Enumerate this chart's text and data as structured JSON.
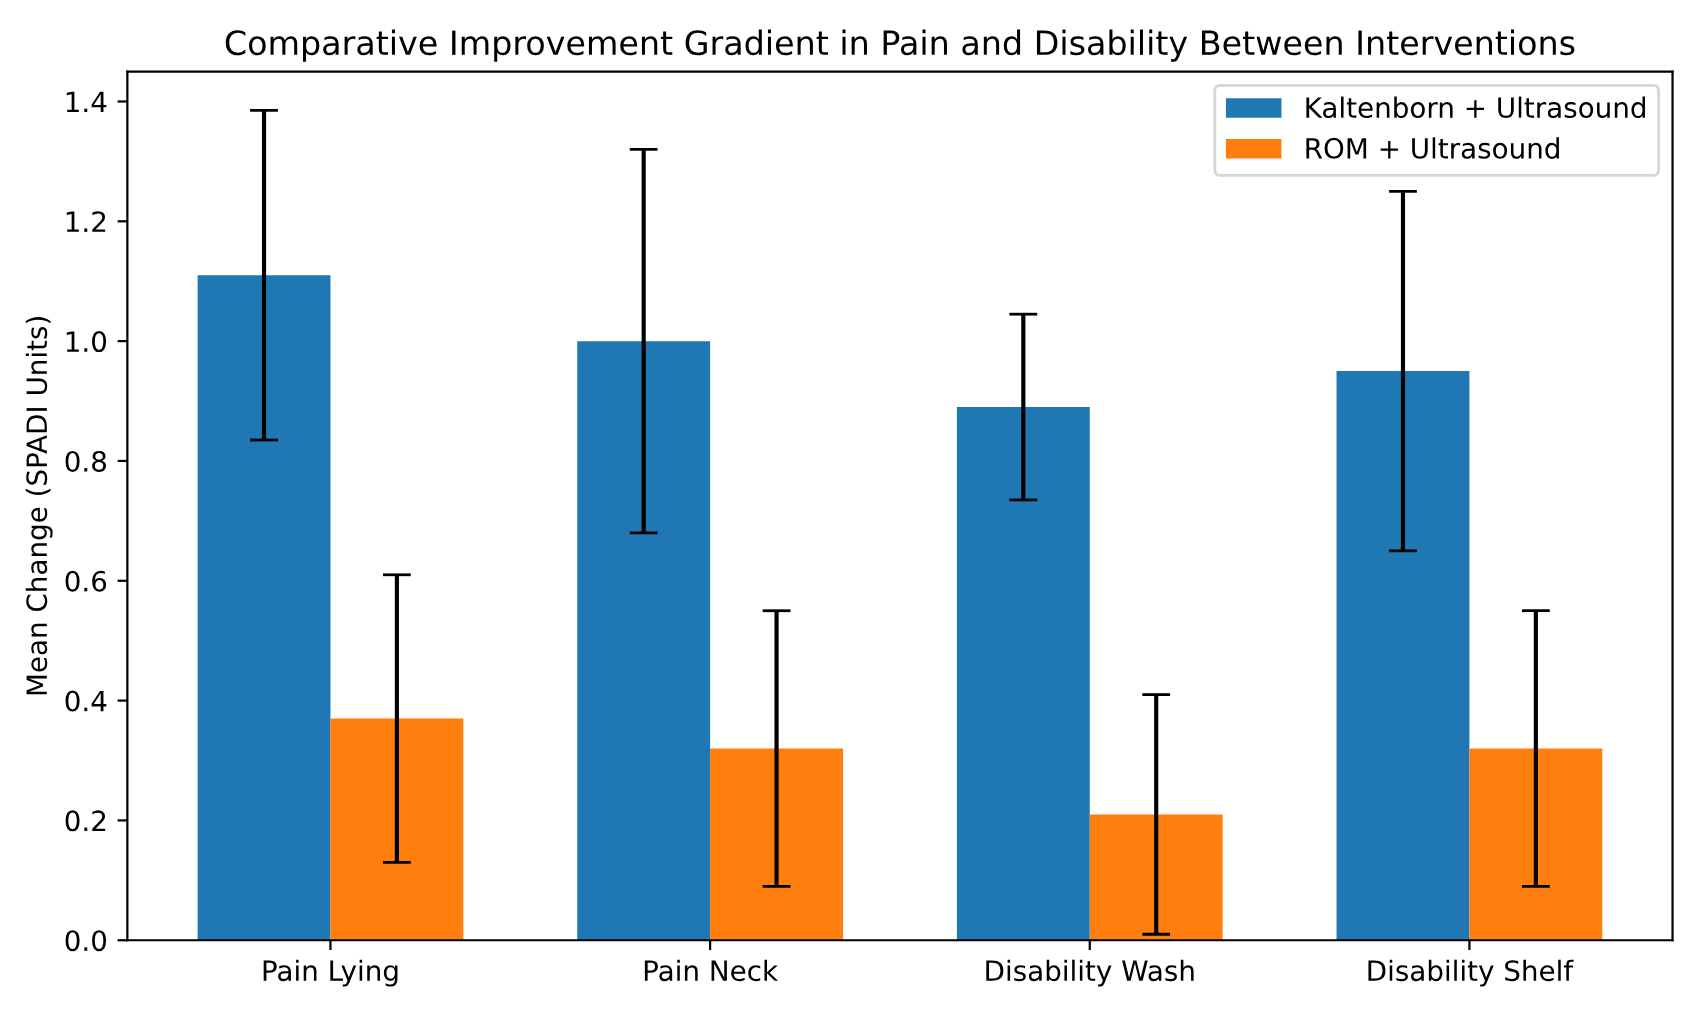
{
  "chart_data": {
    "type": "bar",
    "title": "Comparative Improvement Gradient in Pain and Disability Between Interventions",
    "ylabel": "Mean Change (SPADI Units)",
    "categories": [
      "Pain Lying",
      "Pain Neck",
      "Disability Wash",
      "Disability Shelf"
    ],
    "series": [
      {
        "name": "Kaltenborn + Ultrasound",
        "color": "#1f77b4",
        "values": [
          1.11,
          1.0,
          0.89,
          0.95
        ],
        "errors": [
          0.275,
          0.32,
          0.155,
          0.3
        ]
      },
      {
        "name": "ROM + Ultrasound",
        "color": "#ff7f0e",
        "values": [
          0.37,
          0.32,
          0.21,
          0.32
        ],
        "errors": [
          0.24,
          0.23,
          0.2,
          0.23
        ]
      }
    ],
    "ylim": [
      0,
      1.45
    ],
    "yticks": [
      {
        "value": 0,
        "label": "0.0"
      },
      0.2,
      0.4,
      0.6,
      0.8,
      {
        "value": 1,
        "label": "1.0"
      },
      1.2,
      1.4
    ],
    "grid": false,
    "legend": "top right"
  }
}
